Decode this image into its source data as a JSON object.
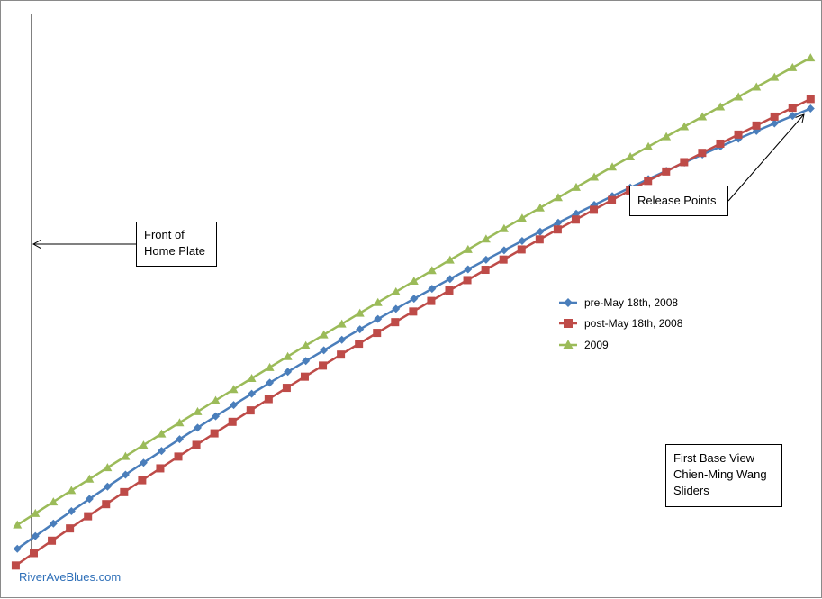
{
  "chart_data": {
    "type": "line",
    "title": "",
    "xlabel": "",
    "ylabel": "",
    "grid": false,
    "legend_position": "right",
    "xlim": [
      0,
      1
    ],
    "ylim": [
      0,
      1
    ],
    "series": [
      {
        "name": "pre-May 18th, 2008",
        "color": "#4a7ebb",
        "marker": "diamond",
        "x0": 0.02,
        "y0": 0.084,
        "x1": 0.985,
        "y1": 0.82,
        "slope0": 0.97,
        "points": 45
      },
      {
        "name": "post-May 18th, 2008",
        "color": "#be4b48",
        "marker": "square",
        "x0": 0.018,
        "y0": 0.056,
        "x1": 0.985,
        "y1": 0.836,
        "slope0": 0.95,
        "points": 45
      },
      {
        "name": "2009",
        "color": "#9bbb59",
        "marker": "triangle",
        "x0": 0.02,
        "y0": 0.124,
        "x1": 0.985,
        "y1": 0.905,
        "slope0": 0.88,
        "points": 45
      }
    ],
    "annotations": [
      {
        "id": "home_plate",
        "lines": [
          "Front of",
          "Home Plate"
        ]
      },
      {
        "id": "release",
        "lines": [
          "Release Points"
        ]
      },
      {
        "id": "view",
        "lines": [
          "First Base View",
          "Chien-Ming Wang",
          "Sliders"
        ]
      }
    ]
  },
  "watermark": "RiverAveBlues.com"
}
